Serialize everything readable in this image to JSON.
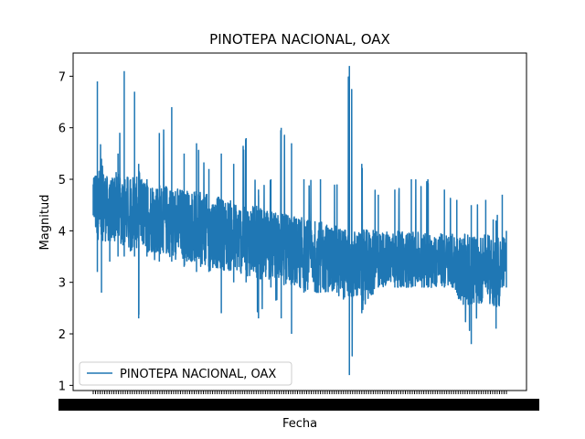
{
  "chart_data": {
    "type": "line",
    "title": "PINOTEPA NACIONAL, OAX",
    "xlabel": "Fecha",
    "ylabel": "Magnitud",
    "ylim": [
      0.9,
      7.45
    ],
    "yticks": [
      1,
      2,
      3,
      4,
      5,
      6,
      7
    ],
    "ytick_labels": [
      "1",
      "2",
      "3",
      "4",
      "5",
      "6",
      "7"
    ],
    "x_note_unreadable_dense_date_ticks": "",
    "grid": false,
    "legend": {
      "position": "lower left",
      "entries": [
        "PINOTEPA NACIONAL, OAX"
      ]
    },
    "series": [
      {
        "name": "PINOTEPA NACIONAL, OAX",
        "color": "#1f77b4",
        "sampled_envelope": [
          {
            "x": 0.0,
            "low": 4.3,
            "high": 4.9
          },
          {
            "x": 0.01,
            "low": 3.2,
            "high": 6.9
          },
          {
            "x": 0.02,
            "low": 2.8,
            "high": 5.4
          },
          {
            "x": 0.04,
            "low": 3.4,
            "high": 4.9
          },
          {
            "x": 0.06,
            "low": 3.5,
            "high": 5.5
          },
          {
            "x": 0.075,
            "low": 3.5,
            "high": 7.1
          },
          {
            "x": 0.09,
            "low": 3.6,
            "high": 5.0
          },
          {
            "x": 0.1,
            "low": 3.5,
            "high": 6.7
          },
          {
            "x": 0.11,
            "low": 2.3,
            "high": 5.3
          },
          {
            "x": 0.13,
            "low": 3.5,
            "high": 5.0
          },
          {
            "x": 0.16,
            "low": 3.4,
            "high": 5.9
          },
          {
            "x": 0.19,
            "low": 3.4,
            "high": 6.4
          },
          {
            "x": 0.22,
            "low": 3.3,
            "high": 5.5
          },
          {
            "x": 0.25,
            "low": 3.2,
            "high": 5.7
          },
          {
            "x": 0.28,
            "low": 3.2,
            "high": 5.2
          },
          {
            "x": 0.31,
            "low": 2.4,
            "high": 5.5
          },
          {
            "x": 0.34,
            "low": 3.0,
            "high": 5.3
          },
          {
            "x": 0.37,
            "low": 3.0,
            "high": 5.8
          },
          {
            "x": 0.4,
            "low": 2.3,
            "high": 4.8
          },
          {
            "x": 0.43,
            "low": 2.9,
            "high": 5.0
          },
          {
            "x": 0.455,
            "low": 2.3,
            "high": 6.0
          },
          {
            "x": 0.48,
            "low": 2.0,
            "high": 5.7
          },
          {
            "x": 0.51,
            "low": 2.8,
            "high": 5.0
          },
          {
            "x": 0.55,
            "low": 2.8,
            "high": 5.0
          },
          {
            "x": 0.59,
            "low": 2.8,
            "high": 4.9
          },
          {
            "x": 0.62,
            "low": 1.2,
            "high": 7.2
          },
          {
            "x": 0.65,
            "low": 2.4,
            "high": 5.3
          },
          {
            "x": 0.69,
            "low": 2.9,
            "high": 4.7
          },
          {
            "x": 0.73,
            "low": 2.9,
            "high": 4.8
          },
          {
            "x": 0.77,
            "low": 2.9,
            "high": 5.0
          },
          {
            "x": 0.81,
            "low": 2.9,
            "high": 5.0
          },
          {
            "x": 0.85,
            "low": 2.9,
            "high": 4.8
          },
          {
            "x": 0.88,
            "low": 2.8,
            "high": 4.6
          },
          {
            "x": 0.915,
            "low": 1.8,
            "high": 4.5
          },
          {
            "x": 0.95,
            "low": 2.9,
            "high": 4.6
          },
          {
            "x": 0.975,
            "low": 2.1,
            "high": 4.2
          },
          {
            "x": 0.99,
            "low": 2.9,
            "high": 4.7
          },
          {
            "x": 1.0,
            "low": 2.9,
            "high": 4.0
          }
        ]
      }
    ]
  }
}
